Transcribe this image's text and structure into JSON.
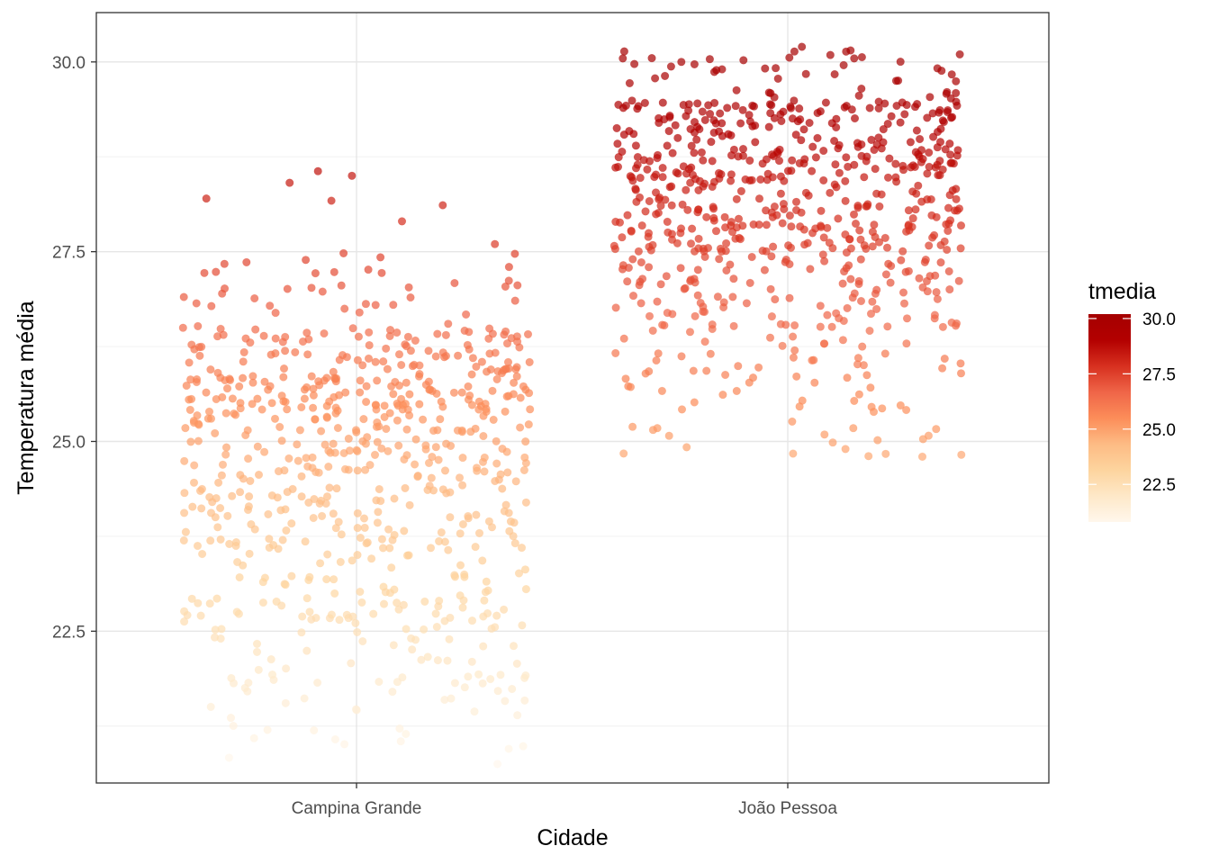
{
  "chart_data": {
    "type": "scatter",
    "jitter": true,
    "xlabel": "Cidade",
    "ylabel": "Temperatura média",
    "categories": [
      "Campina Grande",
      "João Pessoa"
    ],
    "ylim": [
      20.5,
      30.65
    ],
    "yticks": [
      22.5,
      25.0,
      27.5,
      30.0
    ],
    "ytick_labels": [
      "22.5",
      "25.0",
      "27.5",
      "30.0"
    ],
    "grid": true,
    "theme": "bw",
    "point_opacity": 0.7,
    "color_scale": {
      "variable": "tmedia",
      "palette": "OrRd",
      "range": [
        20.8,
        30.2
      ],
      "ticks": [
        22.5,
        25.0,
        27.5,
        30.0
      ],
      "tick_labels": [
        "22.5",
        "25.0",
        "27.5",
        "30.0"
      ],
      "colors": [
        "#fff7ec",
        "#fee8c8",
        "#fdd49e",
        "#fdbb84",
        "#fc8d59",
        "#ef6548",
        "#d7301f",
        "#b30000",
        "#a50000"
      ]
    },
    "legend": {
      "title": "tmedia",
      "position": "right"
    },
    "series": [
      {
        "category": "Campina Grande",
        "approx_count": 720,
        "distribution": [
          {
            "range": [
              20.8,
              21.5
            ],
            "count": 15
          },
          {
            "range": [
              21.5,
              22.5
            ],
            "count": 55
          },
          {
            "range": [
              22.5,
              23.5
            ],
            "count": 90
          },
          {
            "range": [
              23.5,
              24.5
            ],
            "count": 125
          },
          {
            "range": [
              24.5,
              25.5
            ],
            "count": 165
          },
          {
            "range": [
              25.5,
              26.5
            ],
            "count": 185
          },
          {
            "range": [
              26.5,
              27.5
            ],
            "count": 40
          },
          {
            "range": [
              27.5,
              28.6
            ],
            "count": 5
          }
        ]
      },
      {
        "category": "João Pessoa",
        "approx_count": 720,
        "distribution": [
          {
            "range": [
              24.8,
              25.5
            ],
            "count": 25
          },
          {
            "range": [
              25.5,
              26.5
            ],
            "count": 55
          },
          {
            "range": [
              26.5,
              27.5
            ],
            "count": 120
          },
          {
            "range": [
              27.5,
              28.5
            ],
            "count": 210
          },
          {
            "range": [
              28.5,
              29.5
            ],
            "count": 230
          },
          {
            "range": [
              29.5,
              30.2
            ],
            "count": 45
          }
        ]
      }
    ],
    "highlighted_points": [
      {
        "category": "Campina Grande",
        "y": 28.5
      },
      {
        "category": "Campina Grande",
        "y": 28.2
      },
      {
        "category": "Campina Grande",
        "y": 27.9
      },
      {
        "category": "Campina Grande",
        "y": 20.75
      },
      {
        "category": "Campina Grande",
        "y": 20.95
      },
      {
        "category": "Campina Grande",
        "y": 21.2
      },
      {
        "category": "João Pessoa",
        "y": 30.2
      },
      {
        "category": "João Pessoa",
        "y": 30.05
      },
      {
        "category": "João Pessoa",
        "y": 30.0
      },
      {
        "category": "João Pessoa",
        "y": 24.8
      },
      {
        "category": "João Pessoa",
        "y": 24.9
      }
    ]
  }
}
